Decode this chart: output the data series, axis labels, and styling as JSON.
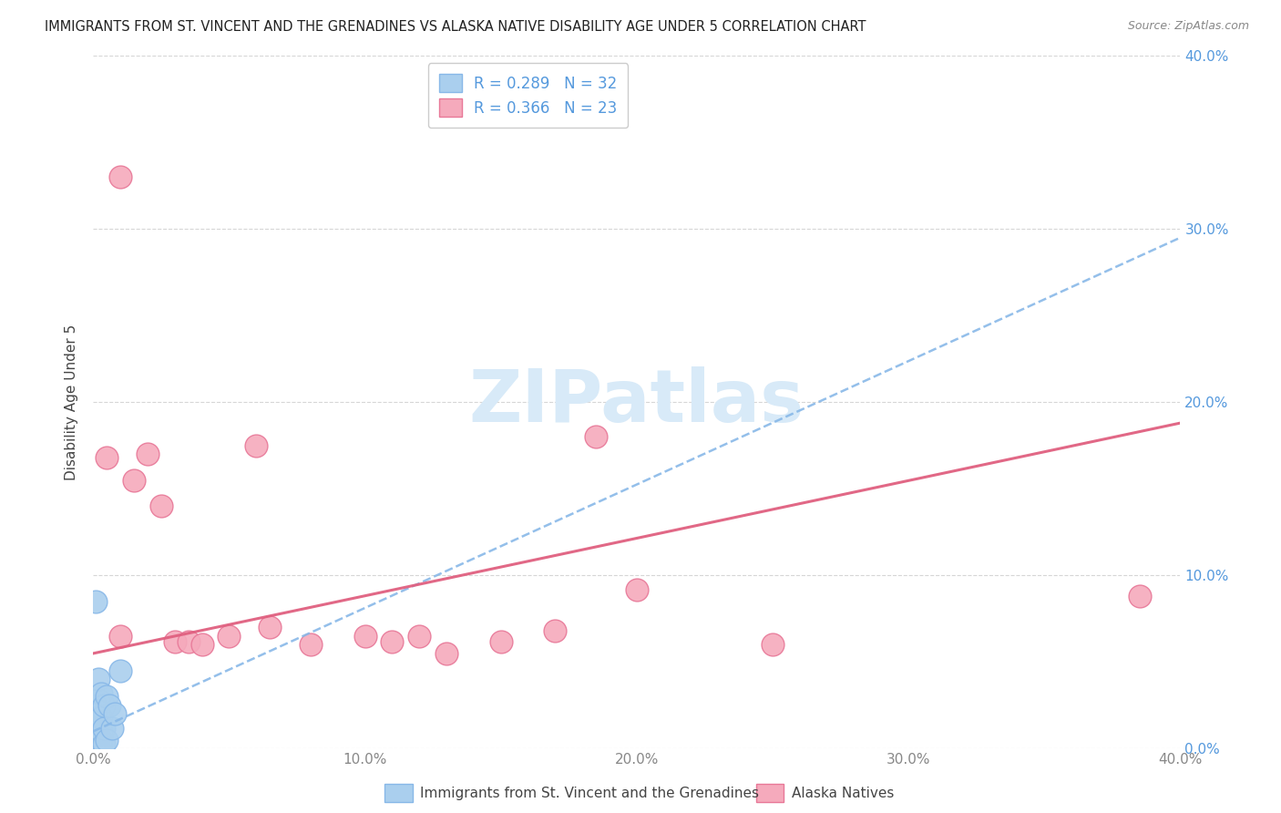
{
  "title": "IMMIGRANTS FROM ST. VINCENT AND THE GRENADINES VS ALASKA NATIVE DISABILITY AGE UNDER 5 CORRELATION CHART",
  "source": "Source: ZipAtlas.com",
  "ylabel": "Disability Age Under 5",
  "legend_label1": "Immigrants from St. Vincent and the Grenadines",
  "legend_label2": "Alaska Natives",
  "R1": "0.289",
  "N1": "32",
  "R2": "0.366",
  "N2": "23",
  "xlim": [
    0.0,
    0.4
  ],
  "ylim": [
    0.0,
    0.4
  ],
  "color_blue": "#aacfee",
  "color_pink": "#f5aabc",
  "edge_blue": "#88b8e8",
  "edge_pink": "#e87898",
  "line_blue_color": "#88b8e8",
  "line_pink_color": "#e06080",
  "tick_color_right": "#5599dd",
  "tick_color_bottom": "#888888",
  "watermark_text": "ZIPatlas",
  "watermark_color": "#d8eaf8",
  "grid_color": "#cccccc",
  "blue_scatter_x": [
    0.001,
    0.001,
    0.001,
    0.001,
    0.001,
    0.001,
    0.001,
    0.001,
    0.001,
    0.001,
    0.002,
    0.002,
    0.002,
    0.002,
    0.002,
    0.002,
    0.002,
    0.002,
    0.003,
    0.003,
    0.003,
    0.003,
    0.003,
    0.004,
    0.004,
    0.004,
    0.005,
    0.005,
    0.006,
    0.007,
    0.008,
    0.01
  ],
  "blue_scatter_y": [
    0.001,
    0.002,
    0.003,
    0.005,
    0.008,
    0.01,
    0.015,
    0.02,
    0.025,
    0.085,
    0.001,
    0.003,
    0.008,
    0.012,
    0.018,
    0.022,
    0.028,
    0.04,
    0.002,
    0.005,
    0.01,
    0.018,
    0.032,
    0.003,
    0.012,
    0.025,
    0.005,
    0.03,
    0.025,
    0.012,
    0.02,
    0.045
  ],
  "pink_scatter_x": [
    0.005,
    0.01,
    0.015,
    0.02,
    0.025,
    0.03,
    0.035,
    0.04,
    0.05,
    0.06,
    0.065,
    0.08,
    0.1,
    0.11,
    0.12,
    0.13,
    0.15,
    0.17,
    0.185,
    0.2,
    0.25,
    0.385,
    0.01
  ],
  "pink_scatter_y": [
    0.168,
    0.065,
    0.155,
    0.17,
    0.14,
    0.062,
    0.062,
    0.06,
    0.065,
    0.175,
    0.07,
    0.06,
    0.065,
    0.062,
    0.065,
    0.055,
    0.062,
    0.068,
    0.18,
    0.092,
    0.06,
    0.088,
    0.33
  ],
  "blue_line_x0": 0.0,
  "blue_line_y0": 0.01,
  "blue_line_x1": 0.4,
  "blue_line_y1": 0.295,
  "pink_line_x0": 0.0,
  "pink_line_y0": 0.055,
  "pink_line_x1": 0.4,
  "pink_line_y1": 0.188
}
